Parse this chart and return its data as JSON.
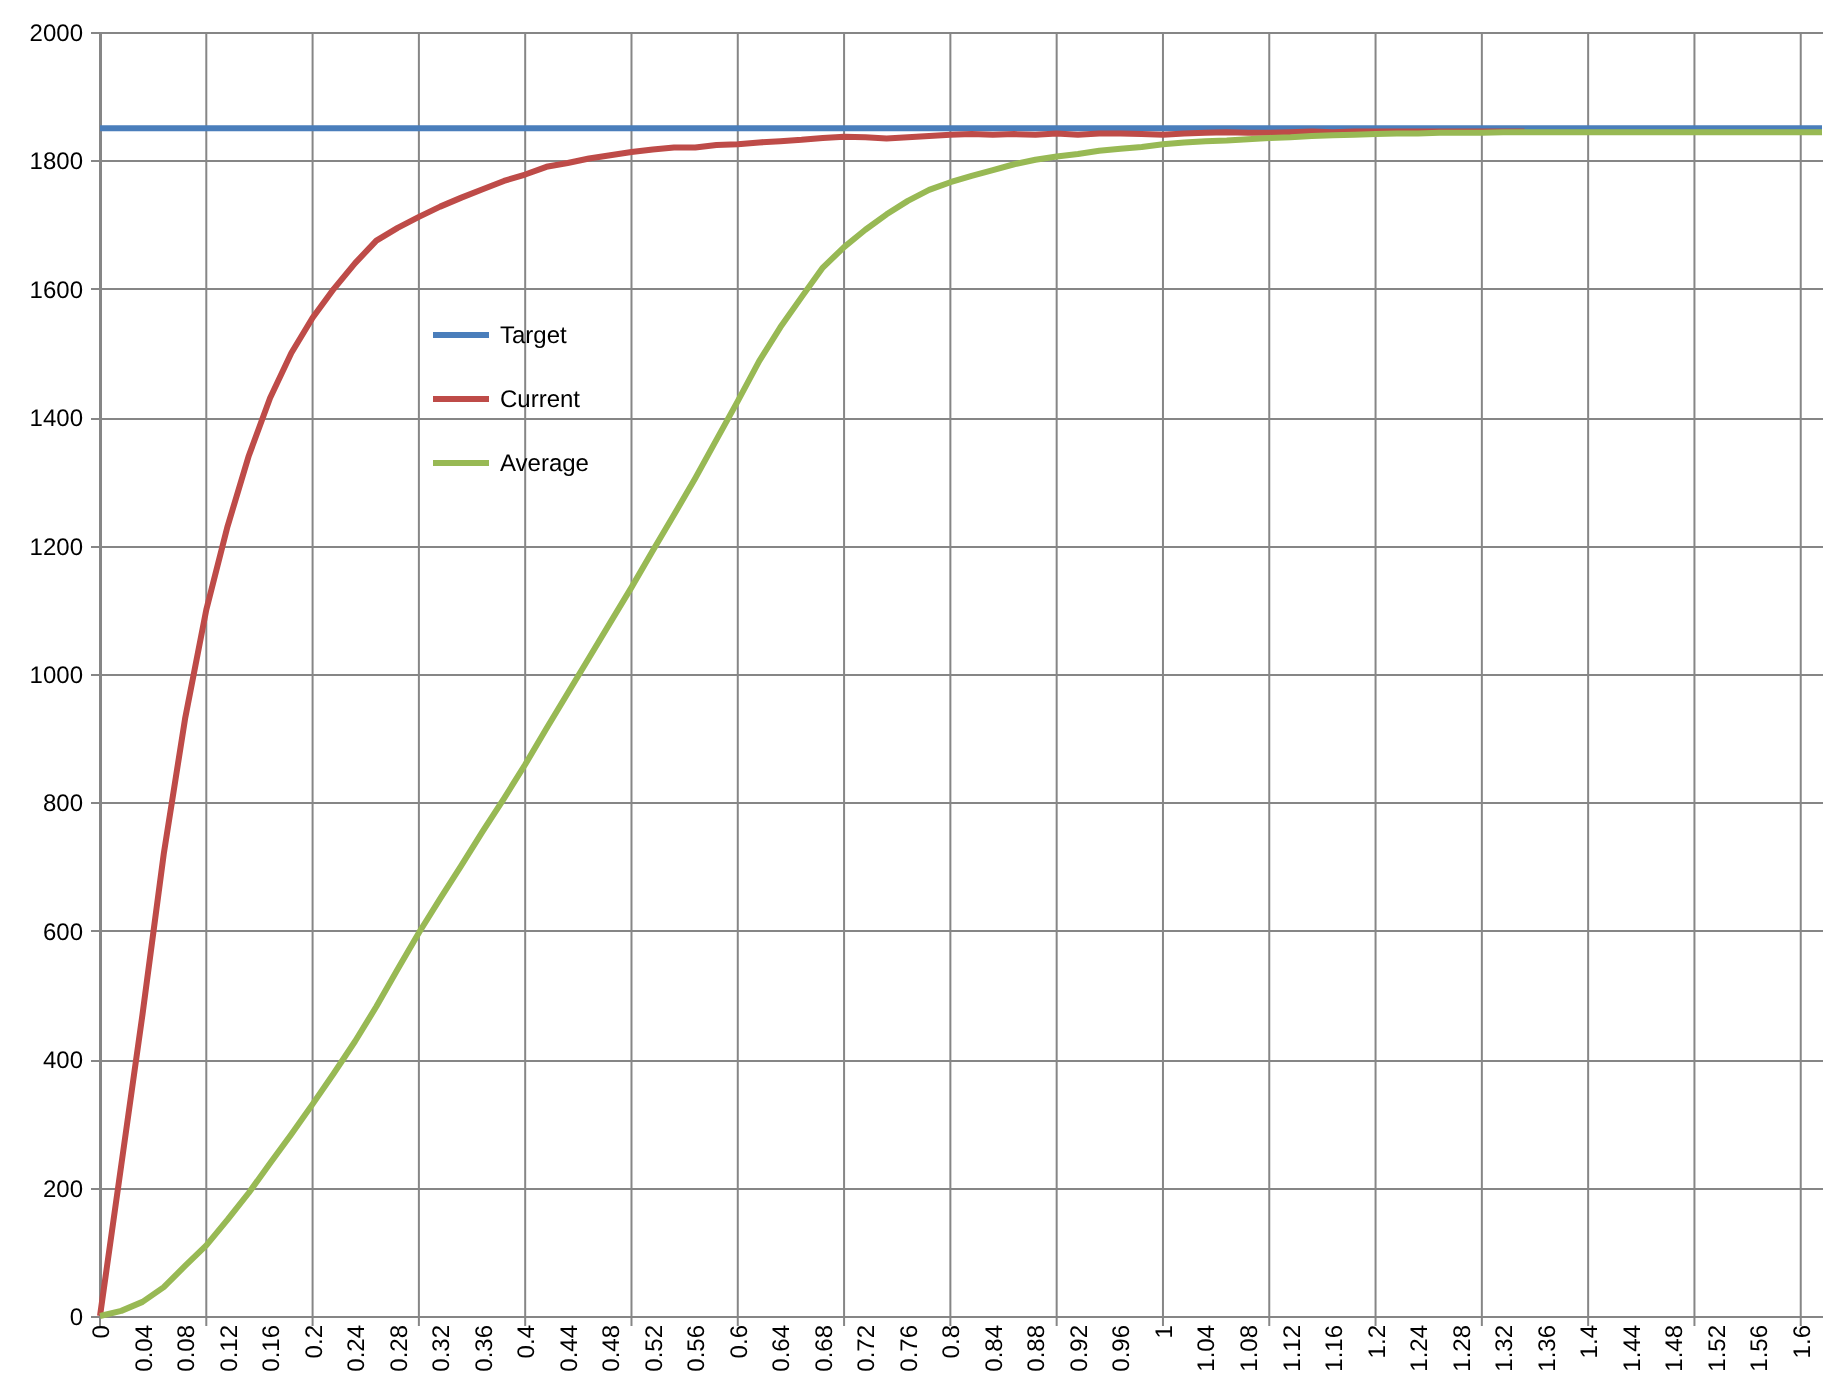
{
  "chart_data": {
    "type": "line",
    "categories": [
      "0",
      null,
      "0.04",
      null,
      "0.08",
      null,
      "0.12",
      null,
      "0.16",
      null,
      "0.2",
      null,
      "0.24",
      null,
      "0.28",
      null,
      "0.32",
      null,
      "0.36",
      null,
      "0.4",
      null,
      "0.44",
      null,
      "0.48",
      null,
      "0.52",
      null,
      "0.56",
      null,
      "0.6",
      null,
      "0.64",
      null,
      "0.68",
      null,
      "0.72",
      null,
      "0.76",
      null,
      "0.8",
      null,
      "0.84",
      null,
      "0.88",
      null,
      "0.92",
      null,
      "0.96",
      null,
      "1",
      null,
      "1.04",
      null,
      "1.08",
      null,
      "1.12",
      null,
      "1.16",
      null,
      "1.2",
      null,
      "1.24",
      null,
      "1.28",
      null,
      "1.32",
      null,
      "1.36",
      null,
      "1.4",
      null,
      "1.44",
      null,
      "1.48",
      null,
      "1.52",
      null,
      "1.56",
      null,
      "1.6",
      null
    ],
    "series": [
      {
        "name": "Target",
        "color": "#4a7ebb",
        "values": [
          1850,
          1850,
          1850,
          1850,
          1850,
          1850,
          1850,
          1850,
          1850,
          1850,
          1850,
          1850,
          1850,
          1850,
          1850,
          1850,
          1850,
          1850,
          1850,
          1850,
          1850,
          1850,
          1850,
          1850,
          1850,
          1850,
          1850,
          1850,
          1850,
          1850,
          1850,
          1850,
          1850,
          1850,
          1850,
          1850,
          1850,
          1850,
          1850,
          1850,
          1850,
          1850,
          1850,
          1850,
          1850,
          1850,
          1850,
          1850,
          1850,
          1850,
          1850,
          1850,
          1850,
          1850,
          1850,
          1850,
          1850,
          1850,
          1850,
          1850,
          1850,
          1850,
          1850,
          1850,
          1850,
          1850,
          1850,
          1850,
          1850,
          1850,
          1850,
          1850,
          1850,
          1850,
          1850,
          1850,
          1850,
          1850,
          1850,
          1850,
          1850,
          1850
        ]
      },
      {
        "name": "Current",
        "color": "#be4b48",
        "values": [
          0,
          235,
          470,
          720,
          930,
          1100,
          1230,
          1340,
          1430,
          1500,
          1555,
          1600,
          1640,
          1675,
          1695,
          1712,
          1728,
          1742,
          1755,
          1768,
          1778,
          1790,
          1796,
          1803,
          1808,
          1813,
          1817,
          1820,
          1820,
          1824,
          1825,
          1828,
          1830,
          1832,
          1835,
          1837,
          1836,
          1834,
          1836,
          1838,
          1840,
          1841,
          1840,
          1841,
          1840,
          1842,
          1840,
          1842,
          1842,
          1841,
          1840,
          1842,
          1843,
          1844,
          1843,
          1843,
          1844,
          1845,
          1844,
          1845,
          1845,
          1845,
          1845,
          1845,
          1845,
          1845,
          1845,
          1845,
          null,
          null,
          null,
          null,
          null,
          null,
          null,
          null,
          null,
          null,
          null,
          null,
          null,
          null
        ]
      },
      {
        "name": "Average",
        "color": "#98b954",
        "values": [
          0,
          8,
          22,
          45,
          78,
          110,
          150,
          192,
          238,
          283,
          330,
          378,
          428,
          482,
          540,
          597,
          650,
          702,
          755,
          806,
          859,
          915,
          970,
          1025,
          1080,
          1135,
          1192,
          1248,
          1305,
          1365,
          1425,
          1487,
          1540,
          1587,
          1633,
          1665,
          1692,
          1716,
          1737,
          1754,
          1766,
          1776,
          1785,
          1794,
          1801,
          1806,
          1810,
          1815,
          1818,
          1821,
          1825,
          1828,
          1830,
          1831,
          1833,
          1835,
          1836,
          1838,
          1839,
          1840,
          1841,
          1842,
          1842,
          1843,
          1843,
          1843,
          1844,
          1844,
          1844,
          1844,
          1844,
          1844,
          1844,
          1844,
          1844,
          1844,
          1844,
          1844,
          1844,
          1844,
          1844,
          1844
        ]
      }
    ],
    "ylim": [
      0,
      2000
    ],
    "yticks": [
      0,
      200,
      400,
      600,
      800,
      1000,
      1200,
      1400,
      1600,
      1800,
      2000
    ],
    "grid": true,
    "legend": "top left"
  }
}
